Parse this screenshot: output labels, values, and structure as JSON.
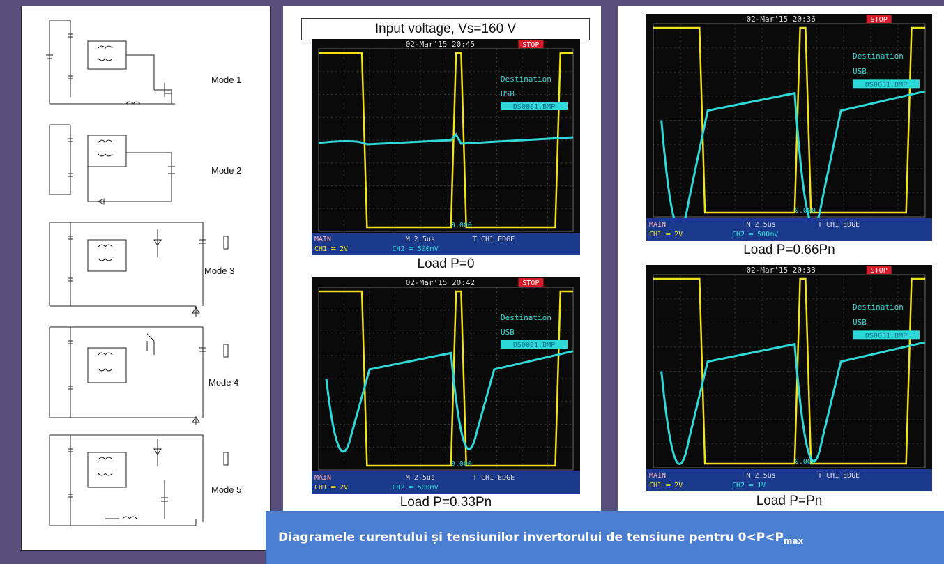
{
  "circuits": {
    "modes": [
      "Mode 1",
      "Mode 2",
      "Mode 3",
      "Mode 4",
      "Mode 5"
    ]
  },
  "scopes": {
    "title": "Input voltage, Vs=160 V",
    "panels": [
      {
        "header": "02-Mar'15 20:45",
        "stop": "STOP",
        "caption": "Load P=0",
        "ch2": "CH2 ═ 500mV",
        "zero": "0.000"
      },
      {
        "header": "02-Mar'15 20:36",
        "stop": "STOP",
        "caption": "Load P=0.66Pn",
        "ch2": "CH2 ═ 500mV",
        "zero": "0.000"
      },
      {
        "header": "02-Mar'15 20:42",
        "stop": "STOP",
        "caption": "Load P=0.33Pn",
        "ch2": "CH2 ═ 500mV",
        "zero": "0.000"
      },
      {
        "header": "02-Mar'15 20:33",
        "stop": "STOP",
        "caption": "Load P=Pn",
        "ch2": "CH2 ═ 1V",
        "zero": "0.000"
      }
    ],
    "common": {
      "main": "MAIN",
      "timebase": "M 2.5us",
      "trigger": "T CH1 EDGE",
      "ch1": "CH1 ═ 2V",
      "dest": "Destination",
      "usb": "USB",
      "file": "DS0031.BMP"
    }
  },
  "banner": {
    "text": "Diagramele curentului și tensiunilor invertorului de tensiune pentru  0<P<P",
    "sub": "max"
  },
  "colors": {
    "ch1": "#f2e019",
    "ch2": "#2fd9d9",
    "grid": "#3a3a3a",
    "bar": "#1b3a8c",
    "banner": "#4a7ed0"
  }
}
